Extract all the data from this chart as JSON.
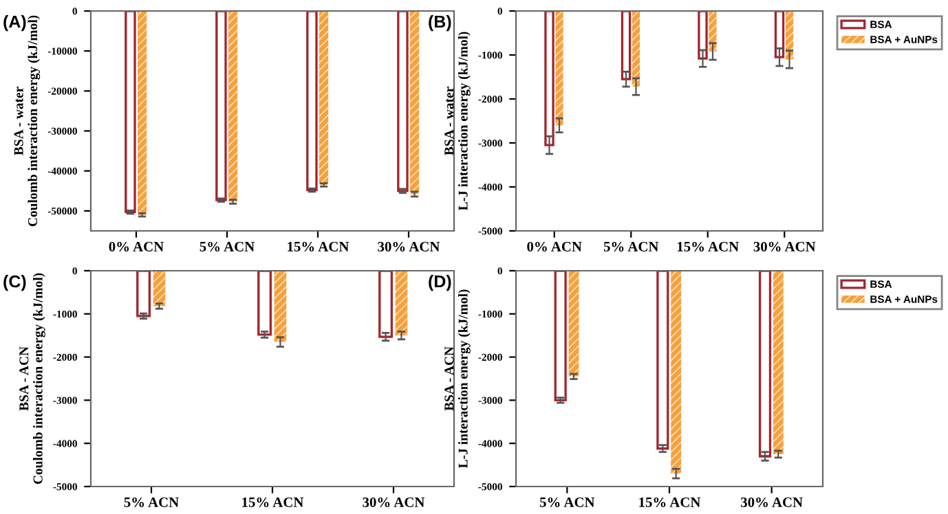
{
  "chart_data": [
    {
      "type": "bar",
      "annotations": [
        "(A)"
      ],
      "ylabel": "BSA - water\nCoulomb interaction energy (kJ/mol)",
      "categories": [
        "0% ACN",
        "5% ACN",
        "15% ACN",
        "30% ACN"
      ],
      "ylim": [
        -55000,
        0
      ],
      "yticks": [
        -50000,
        -40000,
        -30000,
        -20000,
        -10000,
        0
      ],
      "series": [
        {
          "color": "#a3262e",
          "values": [
            -50300,
            -47300,
            -44800,
            -45000
          ],
          "errors": [
            400,
            400,
            400,
            500
          ]
        },
        {
          "color": "#f7a03c",
          "values": [
            -51000,
            -47700,
            -43500,
            -45800
          ],
          "errors": [
            400,
            500,
            400,
            600
          ]
        }
      ]
    },
    {
      "type": "bar",
      "annotations": [
        "(B)"
      ],
      "ylabel": "BSA - water\nL-J interaction energy (kJ/mol)",
      "categories": [
        "0% ACN",
        "5% ACN",
        "15% ACN",
        "30% ACN"
      ],
      "ylim": [
        -5000,
        0
      ],
      "yticks": [
        -5000,
        -4000,
        -3000,
        -2000,
        -1000,
        0
      ],
      "legend": "right",
      "series": [
        {
          "name": "BSA",
          "color": "#a3262e",
          "values": [
            -3050,
            -1550,
            -1080,
            -1050
          ],
          "errors": [
            200,
            170,
            190,
            200
          ]
        },
        {
          "name": "BSA + AuNPs",
          "color": "#f7a03c",
          "values": [
            -2600,
            -1720,
            -920,
            -1100
          ],
          "errors": [
            160,
            190,
            190,
            200
          ]
        }
      ]
    },
    {
      "type": "bar",
      "annotations": [
        "(C)"
      ],
      "ylabel": "BSA - ACN\nCoulomb interaction energy (kJ/mol)",
      "categories": [
        "5% ACN",
        "15% ACN",
        "30% ACN"
      ],
      "ylim": [
        -5000,
        0
      ],
      "yticks": [
        -5000,
        -4000,
        -3000,
        -2000,
        -1000,
        0
      ],
      "series": [
        {
          "color": "#a3262e",
          "values": [
            -1050,
            -1480,
            -1530
          ],
          "errors": [
            60,
            70,
            90
          ]
        },
        {
          "color": "#f7a03c",
          "values": [
            -820,
            -1650,
            -1500
          ],
          "errors": [
            60,
            110,
            90
          ]
        }
      ]
    },
    {
      "type": "bar",
      "annotations": [
        "(D)"
      ],
      "ylabel": "BSA - ACN\nL-J interaction energy (kJ/mol)",
      "categories": [
        "5% ACN",
        "15% ACN",
        "30% ACN"
      ],
      "ylim": [
        -5000,
        0
      ],
      "yticks": [
        -5000,
        -4000,
        -3000,
        -2000,
        -1000,
        0
      ],
      "legend": "right",
      "series": [
        {
          "name": "BSA",
          "color": "#a3262e",
          "values": [
            -3000,
            -4120,
            -4300
          ],
          "errors": [
            60,
            80,
            100
          ]
        },
        {
          "name": "BSA + AuNPs",
          "color": "#f7a03c",
          "values": [
            -2450,
            -4700,
            -4250
          ],
          "errors": [
            60,
            110,
            80
          ]
        }
      ]
    }
  ]
}
